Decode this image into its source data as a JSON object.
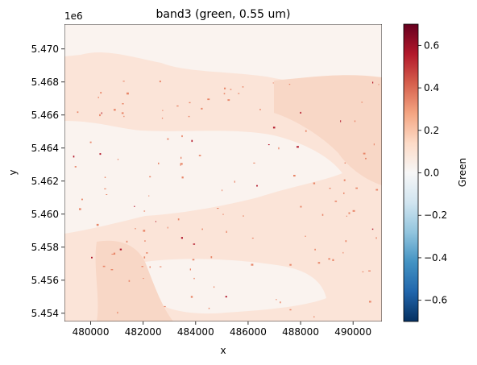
{
  "chart_data": {
    "type": "heatmap",
    "title": "band3 (green, 0.55 um)",
    "xlabel": "x",
    "ylabel": "y",
    "y_offset_label": "1e6",
    "xlim": [
      479000,
      491100
    ],
    "ylim": [
      5.4535,
      5.4715
    ],
    "x_ticks": [
      480000,
      482000,
      484000,
      486000,
      488000,
      490000
    ],
    "x_tick_labels": [
      "480000",
      "482000",
      "484000",
      "486000",
      "488000",
      "490000"
    ],
    "y_ticks": [
      5.454,
      5.456,
      5.458,
      5.46,
      5.462,
      5.464,
      5.466,
      5.468,
      5.47
    ],
    "y_tick_labels": [
      "5.454",
      "5.456",
      "5.458",
      "5.460",
      "5.462",
      "5.464",
      "5.466",
      "5.468",
      "5.470"
    ],
    "colorbar": {
      "label": "Green",
      "colormap": "RdBu_r",
      "vmin": -0.7,
      "vmax": 0.7,
      "ticks": [
        -0.6,
        -0.4,
        -0.2,
        0.0,
        0.2,
        0.4,
        0.6
      ],
      "tick_labels": [
        "−0.6",
        "−0.4",
        "−0.2",
        "0.0",
        "0.2",
        "0.4",
        "0.6"
      ],
      "stops": [
        "#053061",
        "#2166ac",
        "#4393c3",
        "#92c5de",
        "#d1e5f0",
        "#f7f7f7",
        "#fddbc7",
        "#f4a582",
        "#d6604d",
        "#b2182b",
        "#67001f"
      ]
    },
    "field_colors": {
      "background": "#fbe4d8",
      "light_region": "#faf3ef",
      "medium_region": "#f8d7c6",
      "speckle": "#e8876a",
      "dark_speckle": "#b2182b"
    }
  }
}
